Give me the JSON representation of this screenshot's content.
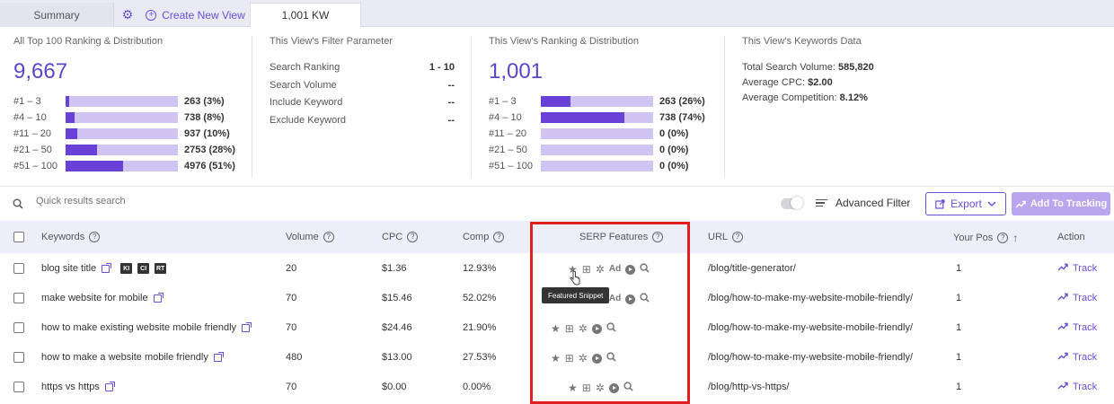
{
  "tabs": {
    "summary": "Summary",
    "create": "Create New View",
    "active": "1,001 KW"
  },
  "all_top": {
    "title": "All Top 100 Ranking & Distribution",
    "total": "9,667",
    "rows": [
      {
        "label": "#1 – 3",
        "value": "263 (3%)",
        "fill": 0.03
      },
      {
        "label": "#4 – 10",
        "value": "738 (8%)",
        "fill": 0.08
      },
      {
        "label": "#11 – 20",
        "value": "937 (10%)",
        "fill": 0.1
      },
      {
        "label": "#21 – 50",
        "value": "2753 (28%)",
        "fill": 0.28
      },
      {
        "label": "#51 – 100",
        "value": "4976 (51%)",
        "fill": 0.51
      }
    ]
  },
  "filter": {
    "title": "This View's Filter Parameter",
    "rows": [
      {
        "label": "Search Ranking",
        "value": "1 - 10"
      },
      {
        "label": "Search Volume",
        "value": "--"
      },
      {
        "label": "Include Keyword",
        "value": "--"
      },
      {
        "label": "Exclude Keyword",
        "value": "--"
      }
    ]
  },
  "view_rank": {
    "title": "This View's Ranking & Distribution",
    "total": "1,001",
    "rows": [
      {
        "label": "#1 – 3",
        "value": "263 (26%)",
        "fill": 0.26
      },
      {
        "label": "#4 – 10",
        "value": "738 (74%)",
        "fill": 0.74
      },
      {
        "label": "#11 – 20",
        "value": "0 (0%)",
        "fill": 0
      },
      {
        "label": "#21 – 50",
        "value": "0 (0%)",
        "fill": 0
      },
      {
        "label": "#51 – 100",
        "value": "0 (0%)",
        "fill": 0
      }
    ]
  },
  "kw_data": {
    "title": "This View's Keywords Data",
    "volume_label": "Total Search Volume:",
    "volume": "585,820",
    "cpc_label": "Average CPC:",
    "cpc": "$2.00",
    "comp_label": "Average Competition:",
    "comp": "8.12%"
  },
  "toolbar": {
    "search_placeholder": "Quick results search",
    "advanced": "Advanced Filter",
    "export": "Export",
    "add_tracking": "Add To Tracking"
  },
  "table": {
    "headers": {
      "keywords": "Keywords",
      "volume": "Volume",
      "cpc": "CPC",
      "comp": "Comp",
      "serp": "SERP Features",
      "url": "URL",
      "pos": "Your Pos",
      "action": "Action"
    },
    "rows": [
      {
        "keyword": "blog site title",
        "volume": "20",
        "cpc": "$1.36",
        "comp": "12.93%",
        "url": "/blog/title-generator/",
        "pos": "1",
        "action": "Track"
      },
      {
        "keyword": "make website for mobile",
        "volume": "70",
        "cpc": "$15.46",
        "comp": "52.02%",
        "url": "/blog/how-to-make-my-website-mobile-friendly/",
        "pos": "1",
        "action": "Track"
      },
      {
        "keyword": "how to make existing website mobile friendly",
        "volume": "70",
        "cpc": "$24.46",
        "comp": "21.90%",
        "url": "/blog/how-to-make-my-website-mobile-friendly/",
        "pos": "1",
        "action": "Track"
      },
      {
        "keyword": "how to make a website mobile friendly",
        "volume": "480",
        "cpc": "$13.00",
        "comp": "27.53%",
        "url": "/blog/how-to-make-my-website-mobile-friendly/",
        "pos": "1",
        "action": "Track"
      },
      {
        "keyword": "https vs https",
        "volume": "70",
        "cpc": "$0.00",
        "comp": "0.00%",
        "url": "/blog/http-vs-https/",
        "pos": "1",
        "action": "Track"
      }
    ],
    "badges": [
      "KI",
      "CI",
      "RT"
    ],
    "ad_label": "Ad",
    "tooltip": "Featured Snippet"
  },
  "colors": {
    "accent": "#6b4fd8",
    "bar_bg": "#d0c5f2",
    "bar_fill": "#6940d8",
    "highlight": "#e02020"
  }
}
